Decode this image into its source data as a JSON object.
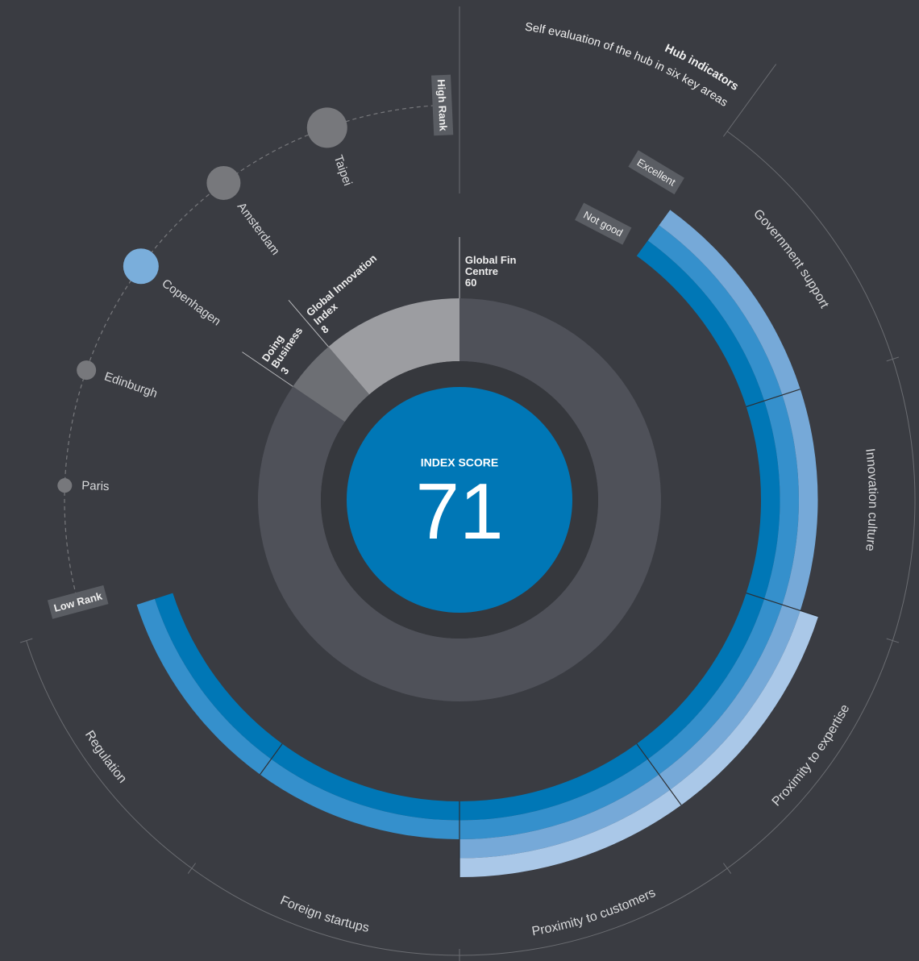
{
  "chart_data": {
    "type": "radial",
    "center": {
      "label": "INDEX SCORE",
      "value": 71,
      "color": "#0077b6"
    },
    "indices": {
      "categories": [
        "Global Fin Centre",
        "Doing Business",
        "Global Innovation Index"
      ],
      "values": [
        60,
        3,
        8
      ],
      "colors": [
        "#4f5159",
        "#6d6f74",
        "#9c9da1"
      ]
    },
    "ranking": {
      "high_label": "High Rank",
      "low_label": "Low Rank",
      "categories": [
        "Taipei",
        "Amsterdam",
        "Copenhagen",
        "Edinburgh",
        "Paris"
      ],
      "values": [
        25,
        21,
        22,
        12,
        9
      ],
      "colors": [
        "#77787c",
        "#77787c",
        "#7aaedb",
        "#77787c",
        "#77787c"
      ]
    },
    "hub": {
      "title": "Hub indicators",
      "subtitle": "Self evaluation of the hub in six key areas",
      "categories": [
        "Government support",
        "Innovation culture",
        "Proximity to expertise",
        "Proximity to customers",
        "Foreign startups",
        "Regulation"
      ],
      "values": [
        3,
        3,
        4,
        4,
        2,
        2
      ],
      "scale_labels": [
        "Not good",
        "Excellent"
      ],
      "colors": [
        "#0077b6",
        "#3590cc",
        "#76a9d8",
        "#aac8e8"
      ]
    }
  }
}
